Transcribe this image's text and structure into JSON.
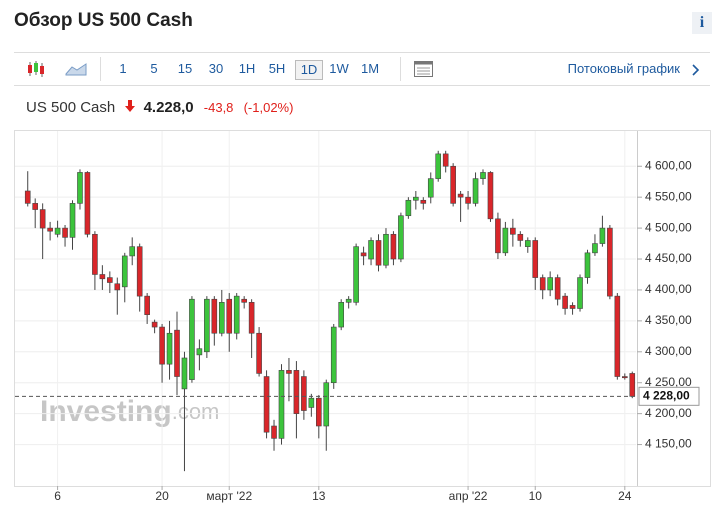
{
  "header": {
    "title": "Обзор US 500 Cash",
    "info": "i"
  },
  "toolbar": {
    "intervals": [
      "1",
      "5",
      "15",
      "30",
      "1H",
      "5H",
      "1D",
      "1W",
      "1M"
    ],
    "active": 6,
    "stream": "Потоковый график"
  },
  "quote": {
    "instrument": "US 500 Cash",
    "price": "4.228,0",
    "change": "-43,8",
    "change_pct": "(-1,02%)"
  },
  "chart_data": {
    "type": "candlestick",
    "categories": [
      null,
      null,
      null,
      null,
      "6",
      null,
      null,
      null,
      null,
      null,
      null,
      null,
      null,
      null,
      null,
      null,
      null,
      null,
      "20",
      null,
      null,
      null,
      null,
      null,
      null,
      null,
      null,
      "март '22",
      null,
      null,
      null,
      null,
      null,
      null,
      null,
      null,
      null,
      null,
      null,
      "13",
      null,
      null,
      null,
      null,
      null,
      null,
      null,
      null,
      null,
      null,
      null,
      null,
      null,
      null,
      null,
      null,
      null,
      null,
      null,
      "апр '22",
      null,
      null,
      null,
      null,
      null,
      null,
      null,
      null,
      "10",
      null,
      null,
      null,
      null,
      null,
      null,
      null,
      null,
      null,
      null,
      null,
      "24",
      null
    ],
    "open": [
      4560,
      4540,
      4530,
      4500,
      4490,
      4500,
      4485,
      4540,
      4590,
      4490,
      4425,
      4420,
      4410,
      4405,
      4455,
      4470,
      4390,
      4348,
      4340,
      4280,
      4335,
      4240,
      4255,
      4295,
      4300,
      4385,
      4330,
      4385,
      4330,
      4385,
      4380,
      4330,
      4260,
      4180,
      4160,
      4270,
      4270,
      4260,
      4210,
      4225,
      4180,
      4250,
      4340,
      4380,
      4380,
      4460,
      4450,
      4480,
      4440,
      4490,
      4450,
      4520,
      4545,
      4545,
      4550,
      4580,
      4620,
      4600,
      4555,
      4550,
      4540,
      4580,
      4590,
      4515,
      4460,
      4500,
      4490,
      4470,
      4480,
      4420,
      4400,
      4420,
      4390,
      4375,
      4370,
      4420,
      4460,
      4475,
      4500,
      4390,
      4260,
      4265
    ],
    "high": [
      4592,
      4548,
      4540,
      4510,
      4512,
      4505,
      4545,
      4595,
      4592,
      4495,
      4440,
      4430,
      4420,
      4460,
      4485,
      4475,
      4395,
      4352,
      4345,
      4350,
      4365,
      4300,
      4390,
      4320,
      4390,
      4390,
      4400,
      4395,
      4395,
      4390,
      4385,
      4340,
      4270,
      4190,
      4280,
      4290,
      4285,
      4270,
      4232,
      4230,
      4255,
      4345,
      4385,
      4390,
      4475,
      4470,
      4485,
      4490,
      4500,
      4495,
      4525,
      4550,
      4560,
      4550,
      4590,
      4625,
      4625,
      4605,
      4560,
      4560,
      4590,
      4595,
      4592,
      4525,
      4510,
      4515,
      4495,
      4485,
      4485,
      4425,
      4430,
      4425,
      4395,
      4380,
      4425,
      4465,
      4490,
      4520,
      4505,
      4395,
      4265,
      4268
    ],
    "low": [
      4535,
      4500,
      4450,
      4480,
      4485,
      4470,
      4465,
      4530,
      4485,
      4400,
      4400,
      4395,
      4360,
      4380,
      4440,
      4365,
      4345,
      4330,
      4250,
      4255,
      4230,
      4107,
      4250,
      4270,
      4290,
      4310,
      4325,
      4300,
      4320,
      4370,
      4290,
      4260,
      4160,
      4140,
      4150,
      4220,
      4160,
      4190,
      4195,
      4160,
      4140,
      4240,
      4335,
      4370,
      4375,
      4440,
      4440,
      4430,
      4435,
      4440,
      4445,
      4515,
      4530,
      4530,
      4540,
      4575,
      4590,
      4535,
      4510,
      4530,
      4535,
      4570,
      4510,
      4450,
      4455,
      4470,
      4470,
      4460,
      4400,
      4385,
      4390,
      4375,
      4360,
      4360,
      4365,
      4410,
      4455,
      4470,
      4385,
      4255,
      4255,
      4225
    ],
    "close": [
      4540,
      4530,
      4500,
      4495,
      4500,
      4485,
      4540,
      4590,
      4490,
      4425,
      4418,
      4412,
      4400,
      4455,
      4470,
      4390,
      4360,
      4340,
      4280,
      4330,
      4260,
      4290,
      4385,
      4305,
      4385,
      4330,
      4380,
      4330,
      4390,
      4380,
      4330,
      4265,
      4170,
      4160,
      4270,
      4265,
      4200,
      4205,
      4225,
      4180,
      4250,
      4340,
      4380,
      4385,
      4470,
      4455,
      4480,
      4440,
      4490,
      4450,
      4520,
      4545,
      4550,
      4540,
      4580,
      4620,
      4600,
      4540,
      4550,
      4540,
      4580,
      4590,
      4515,
      4460,
      4500,
      4490,
      4480,
      4480,
      4420,
      4400,
      4420,
      4385,
      4370,
      4370,
      4420,
      4460,
      4475,
      4500,
      4390,
      4260,
      4258,
      4228
    ],
    "up_color": "#3cc43c",
    "down_color": "#d9262a",
    "ylim": [
      4083,
      4657
    ],
    "yticks": [
      {
        "value": 4150,
        "label": "4 150,00"
      },
      {
        "value": 4200,
        "label": "4 200,00"
      },
      {
        "value": 4250,
        "label": "4 250,00"
      },
      {
        "value": 4300,
        "label": "4 300,00"
      },
      {
        "value": 4350,
        "label": "4 350,00"
      },
      {
        "value": 4400,
        "label": "4 400,00"
      },
      {
        "value": 4450,
        "label": "4 450,00"
      },
      {
        "value": 4500,
        "label": "4 500,00"
      },
      {
        "value": 4550,
        "label": "4 550,00"
      },
      {
        "value": 4600,
        "label": "4 600,00"
      }
    ],
    "grid": true,
    "last_price": {
      "value": 4228,
      "label": "4 228,00"
    },
    "watermark": "Investing",
    "watermark_suffix": ".com"
  }
}
